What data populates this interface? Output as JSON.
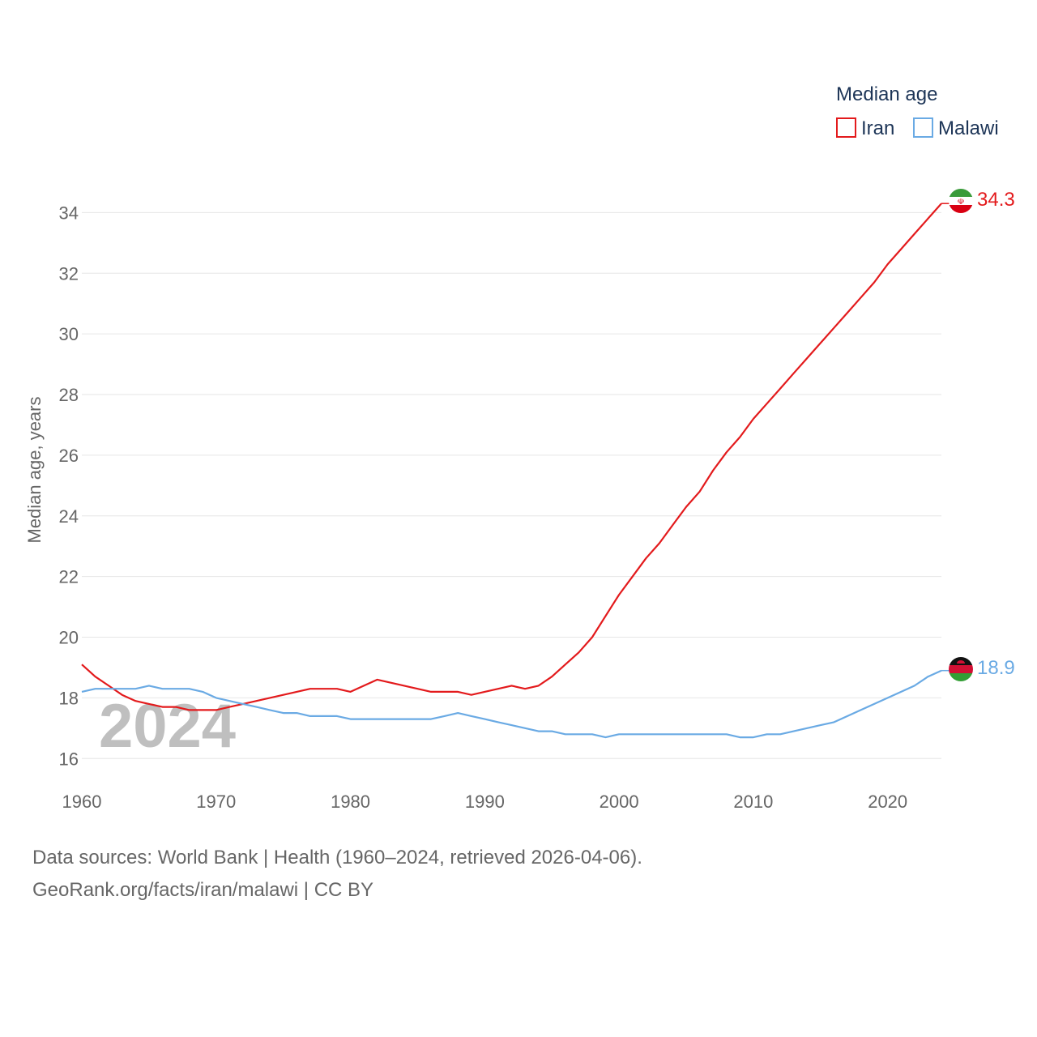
{
  "chart_data": {
    "type": "line",
    "title": "",
    "ylabel": "Median age, years",
    "xlabel": "",
    "xlim": [
      1960,
      2024
    ],
    "ylim": [
      15.5,
      35
    ],
    "x_ticks": [
      1960,
      1970,
      1980,
      1990,
      2000,
      2010,
      2020
    ],
    "y_ticks": [
      16,
      18,
      20,
      22,
      24,
      26,
      28,
      30,
      32,
      34
    ],
    "grid": "horizontal",
    "legend": {
      "title": "Median age",
      "position": "top-right"
    },
    "year_label": "2024",
    "x": [
      1960,
      1961,
      1962,
      1963,
      1964,
      1965,
      1966,
      1967,
      1968,
      1969,
      1970,
      1971,
      1972,
      1973,
      1974,
      1975,
      1976,
      1977,
      1978,
      1979,
      1980,
      1981,
      1982,
      1983,
      1984,
      1985,
      1986,
      1987,
      1988,
      1989,
      1990,
      1991,
      1992,
      1993,
      1994,
      1995,
      1996,
      1997,
      1998,
      1999,
      2000,
      2001,
      2002,
      2003,
      2004,
      2005,
      2006,
      2007,
      2008,
      2009,
      2010,
      2011,
      2012,
      2013,
      2014,
      2015,
      2016,
      2017,
      2018,
      2019,
      2020,
      2021,
      2022,
      2023,
      2024
    ],
    "series": [
      {
        "name": "Iran",
        "color": "#e31a1c",
        "end_label": "34.3",
        "values": [
          19.1,
          18.7,
          18.4,
          18.1,
          17.9,
          17.8,
          17.7,
          17.7,
          17.6,
          17.6,
          17.6,
          17.7,
          17.8,
          17.9,
          18.0,
          18.1,
          18.2,
          18.3,
          18.3,
          18.3,
          18.2,
          18.4,
          18.6,
          18.5,
          18.4,
          18.3,
          18.2,
          18.2,
          18.2,
          18.1,
          18.2,
          18.3,
          18.4,
          18.3,
          18.4,
          18.7,
          19.1,
          19.5,
          20.0,
          20.7,
          21.4,
          22.0,
          22.6,
          23.1,
          23.7,
          24.3,
          24.8,
          25.5,
          26.1,
          26.6,
          27.2,
          27.7,
          28.2,
          28.7,
          29.2,
          29.7,
          30.2,
          30.7,
          31.2,
          31.7,
          32.3,
          32.8,
          33.3,
          33.8,
          34.3
        ]
      },
      {
        "name": "Malawi",
        "color": "#6aaae4",
        "end_label": "18.9",
        "values": [
          18.2,
          18.3,
          18.3,
          18.3,
          18.3,
          18.4,
          18.3,
          18.3,
          18.3,
          18.2,
          18.0,
          17.9,
          17.8,
          17.7,
          17.6,
          17.5,
          17.5,
          17.4,
          17.4,
          17.4,
          17.3,
          17.3,
          17.3,
          17.3,
          17.3,
          17.3,
          17.3,
          17.4,
          17.5,
          17.4,
          17.3,
          17.2,
          17.1,
          17.0,
          16.9,
          16.9,
          16.8,
          16.8,
          16.8,
          16.7,
          16.8,
          16.8,
          16.8,
          16.8,
          16.8,
          16.8,
          16.8,
          16.8,
          16.8,
          16.7,
          16.7,
          16.8,
          16.8,
          16.9,
          17.0,
          17.1,
          17.2,
          17.4,
          17.6,
          17.8,
          18.0,
          18.2,
          18.4,
          18.7,
          18.9
        ]
      }
    ]
  },
  "flags": {
    "iran": {
      "green": "#3a9b3a",
      "white": "#ffffff",
      "red": "#d90012",
      "emblem": "#d90012"
    },
    "malawi": {
      "black": "#111111",
      "red": "#d21034",
      "green": "#339e35",
      "sun": "#d21034"
    }
  },
  "footer": {
    "line1": "Data sources: World Bank | Health (1960–2024, retrieved 2026-04-06).",
    "line2": "GeoRank.org/facts/iran/malawi | CC BY"
  }
}
